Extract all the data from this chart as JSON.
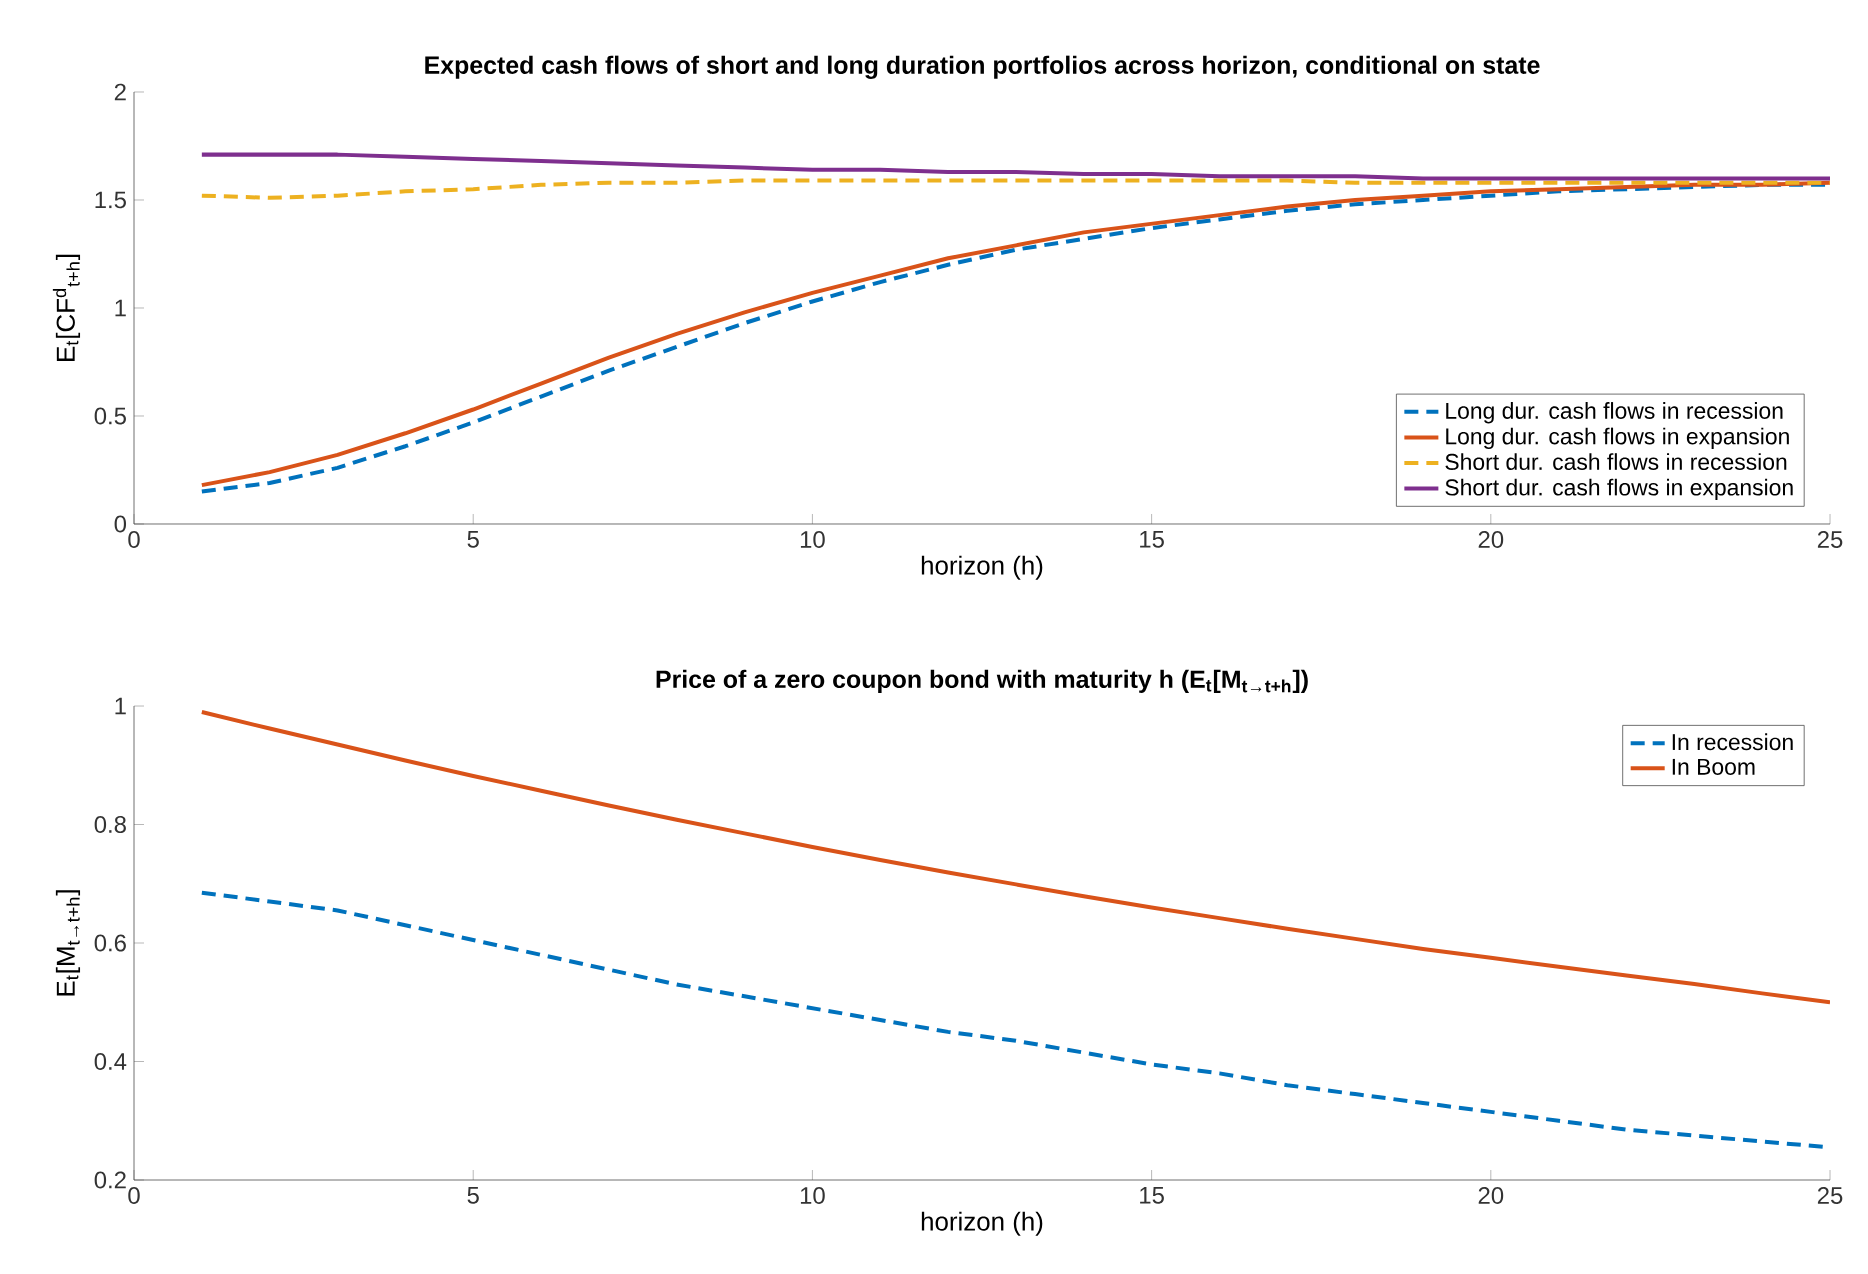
{
  "chart_data": [
    {
      "type": "line",
      "title": "Expected cash flows of short and long duration portfolios across horizon, conditional on state",
      "xlabel": "horizon (h)",
      "ylabel": "E$_{t}$[CF$^{d}$$_{t+h}$]",
      "x": [
        1,
        2,
        3,
        4,
        5,
        6,
        7,
        8,
        9,
        10,
        11,
        12,
        13,
        14,
        15,
        16,
        17,
        18,
        19,
        20,
        21,
        22,
        23,
        24,
        25
      ],
      "series": [
        {
          "name": "Long dur. cash flows in recession",
          "color": "#0072bd",
          "line_style": "dashed",
          "values": [
            0.15,
            0.19,
            0.26,
            0.36,
            0.47,
            0.59,
            0.71,
            0.82,
            0.93,
            1.03,
            1.12,
            1.2,
            1.27,
            1.32,
            1.37,
            1.41,
            1.45,
            1.48,
            1.5,
            1.52,
            1.54,
            1.55,
            1.56,
            1.57,
            1.57
          ]
        },
        {
          "name": "Long dur. cash flows in expansion",
          "color": "#d95319",
          "line_style": "solid",
          "values": [
            0.18,
            0.24,
            0.32,
            0.42,
            0.53,
            0.65,
            0.77,
            0.88,
            0.98,
            1.07,
            1.15,
            1.23,
            1.29,
            1.35,
            1.39,
            1.43,
            1.47,
            1.5,
            1.52,
            1.54,
            1.55,
            1.56,
            1.57,
            1.57,
            1.58
          ]
        },
        {
          "name": "Short dur. cash flows in recession",
          "color": "#edb120",
          "line_style": "dashed",
          "values": [
            1.52,
            1.51,
            1.52,
            1.54,
            1.55,
            1.57,
            1.58,
            1.58,
            1.59,
            1.59,
            1.59,
            1.59,
            1.59,
            1.59,
            1.59,
            1.59,
            1.59,
            1.58,
            1.58,
            1.58,
            1.58,
            1.58,
            1.58,
            1.58,
            1.58
          ]
        },
        {
          "name": "Short dur. cash flows in expansion",
          "color": "#7e2f8e",
          "line_style": "solid",
          "values": [
            1.71,
            1.71,
            1.71,
            1.7,
            1.69,
            1.68,
            1.67,
            1.66,
            1.65,
            1.64,
            1.64,
            1.63,
            1.63,
            1.62,
            1.62,
            1.61,
            1.61,
            1.61,
            1.6,
            1.6,
            1.6,
            1.6,
            1.6,
            1.6,
            1.6
          ]
        }
      ],
      "xlim": [
        0,
        25
      ],
      "xticks": [
        0,
        5,
        10,
        15,
        20,
        25
      ],
      "ylim": [
        0,
        2
      ],
      "yticks": [
        0,
        0.5,
        1,
        1.5,
        2
      ],
      "legend": "bottom right"
    },
    {
      "type": "line",
      "title": "Price of a zero coupon bond with maturity h (E$_{t}$[M$_{t→t+h}$])",
      "xlabel": "horizon (h)",
      "ylabel": "E$_{t}$[M$_{t→t+h}$]",
      "x": [
        1,
        2,
        3,
        4,
        5,
        6,
        7,
        8,
        9,
        10,
        11,
        12,
        13,
        14,
        15,
        16,
        17,
        18,
        19,
        20,
        21,
        22,
        23,
        24,
        25
      ],
      "series": [
        {
          "name": "In recession",
          "color": "#0072bd",
          "line_style": "dashed",
          "values": [
            0.685,
            0.67,
            0.655,
            0.63,
            0.605,
            0.58,
            0.555,
            0.53,
            0.51,
            0.49,
            0.47,
            0.45,
            0.435,
            0.415,
            0.395,
            0.38,
            0.36,
            0.345,
            0.33,
            0.315,
            0.3,
            0.285,
            0.275,
            0.265,
            0.255
          ]
        },
        {
          "name": "In Boom",
          "color": "#d95319",
          "line_style": "solid",
          "values": [
            0.99,
            0.962,
            0.935,
            0.908,
            0.882,
            0.857,
            0.832,
            0.808,
            0.785,
            0.762,
            0.74,
            0.719,
            0.699,
            0.679,
            0.66,
            0.642,
            0.624,
            0.607,
            0.59,
            0.575,
            0.56,
            0.545,
            0.531,
            0.515,
            0.5
          ]
        }
      ],
      "xlim": [
        0,
        25
      ],
      "xticks": [
        0,
        5,
        10,
        15,
        20,
        25
      ],
      "ylim": [
        0.2,
        1
      ],
      "yticks": [
        0.2,
        0.4,
        0.6,
        0.8,
        1
      ],
      "legend": "top right"
    }
  ]
}
